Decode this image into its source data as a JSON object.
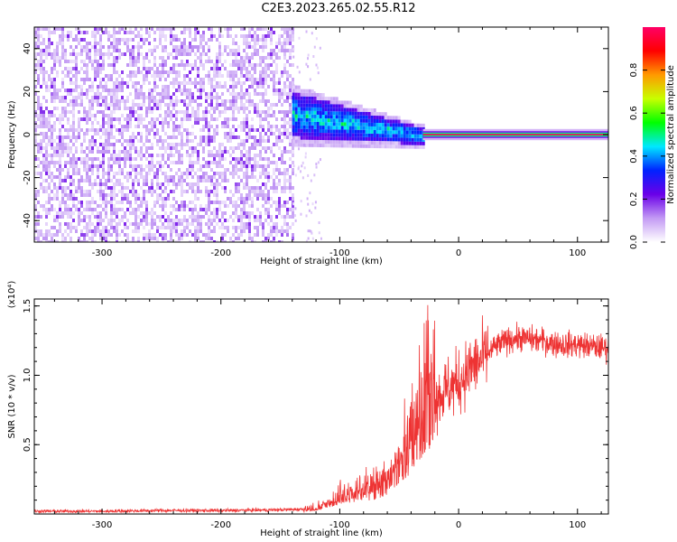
{
  "title": "C2E3.2023.265.02.55.R12",
  "chart_data": [
    {
      "type": "heatmap",
      "xlabel": "Height of straight line (km)",
      "ylabel": "Frequency (Hz)",
      "xlim": [
        -357,
        126
      ],
      "ylim": [
        -50,
        50
      ],
      "xticks": [
        -300,
        -200,
        -100,
        0,
        100
      ],
      "yticks": [
        -40,
        -20,
        0,
        20,
        40
      ],
      "grid": false,
      "colorbar": {
        "label": "Normalized spectral amplitude",
        "range": [
          0.0,
          1.0
        ],
        "ticks": [
          0.0,
          0.2,
          0.4,
          0.6,
          0.8
        ],
        "colors": [
          "#ffffff",
          "#c39af4",
          "#6a00e8",
          "#0022ff",
          "#00e8ff",
          "#00ff00",
          "#c8ff00",
          "#ff9900",
          "#ff0000",
          "#ff0066"
        ]
      },
      "regions": [
        {
          "x_range": [
            -357,
            -140
          ],
          "freq_range": [
            -50,
            50
          ],
          "amplitude": [
            0.0,
            0.15
          ],
          "pattern": "broadband noise"
        },
        {
          "x_range": [
            -140,
            -30
          ],
          "freq_center_start": 10,
          "freq_center_end": 0,
          "amplitude": [
            0.15,
            0.55
          ],
          "pattern": "converging spectral band"
        },
        {
          "x_range": [
            -30,
            126
          ],
          "freq_center": 0,
          "amplitude": [
            0.9,
            1.0
          ],
          "pattern": "narrow line at 0 Hz"
        }
      ]
    },
    {
      "type": "line",
      "xlabel": "Height of straight line (km)",
      "ylabel": "SNR (10 * v/v)",
      "multiplier": "(x10⁴)",
      "xlim": [
        -357,
        126
      ],
      "ylim": [
        0,
        1.55
      ],
      "xticks": [
        -300,
        -200,
        -100,
        0,
        100
      ],
      "yticks": [
        0.5,
        1.0,
        1.5
      ],
      "color": "#ee3333",
      "x": [
        -357,
        -300,
        -250,
        -200,
        -150,
        -130,
        -120,
        -110,
        -100,
        -90,
        -80,
        -70,
        -60,
        -50,
        -40,
        -30,
        -20,
        -10,
        0,
        10,
        20,
        30,
        40,
        50,
        60,
        70,
        80,
        90,
        100,
        110,
        120,
        126
      ],
      "y": [
        0.02,
        0.02,
        0.025,
        0.025,
        0.03,
        0.035,
        0.04,
        0.07,
        0.13,
        0.15,
        0.17,
        0.18,
        0.25,
        0.35,
        0.55,
        0.75,
        0.82,
        0.9,
        0.95,
        1.05,
        1.12,
        1.2,
        1.25,
        1.27,
        1.26,
        1.25,
        1.23,
        1.22,
        1.22,
        1.21,
        1.2,
        1.2
      ]
    }
  ]
}
